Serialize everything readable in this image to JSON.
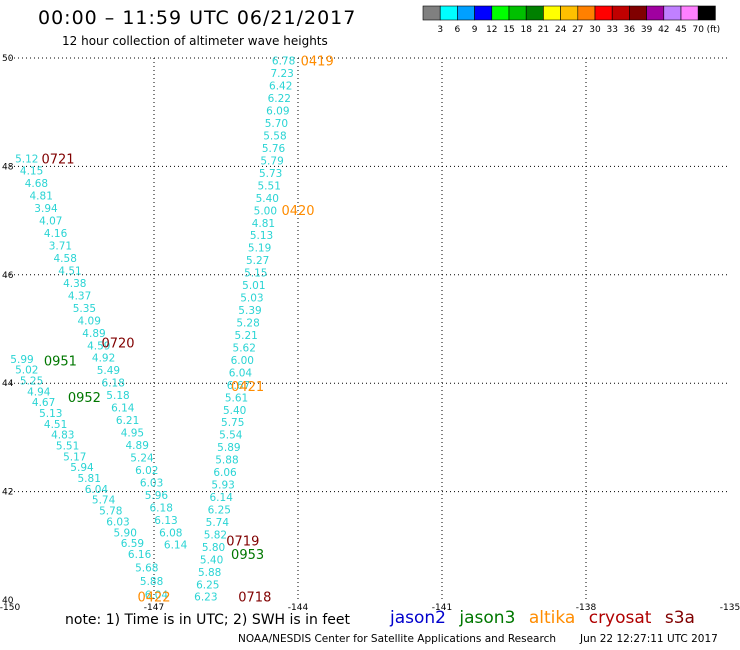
{
  "header": {
    "title": "00:00 – 11:59 UTC 06/21/2017",
    "subtitle": "12 hour collection of altimeter wave heights"
  },
  "legend": {
    "unit": "(ft)",
    "items": [
      {
        "label": "3",
        "color": "#808080"
      },
      {
        "label": "6",
        "color": "#00ffff"
      },
      {
        "label": "9",
        "color": "#00a0ff"
      },
      {
        "label": "12",
        "color": "#0000ff"
      },
      {
        "label": "15",
        "color": "#00ff00"
      },
      {
        "label": "18",
        "color": "#00c000"
      },
      {
        "label": "21",
        "color": "#008000"
      },
      {
        "label": "24",
        "color": "#ffff00"
      },
      {
        "label": "27",
        "color": "#ffc000"
      },
      {
        "label": "30",
        "color": "#ff8000"
      },
      {
        "label": "33",
        "color": "#ff0000"
      },
      {
        "label": "36",
        "color": "#c00000"
      },
      {
        "label": "39",
        "color": "#800000"
      },
      {
        "label": "42",
        "color": "#a000a0"
      },
      {
        "label": "45",
        "color": "#c080ff"
      },
      {
        "label": "70",
        "color": "#ff80ff"
      },
      {
        "label": "",
        "color": "#000000"
      }
    ]
  },
  "map": {
    "lon_range": [
      -150,
      -135
    ],
    "lat_range": [
      40,
      50
    ],
    "lon_ticks": [
      "-150",
      "-147",
      "-144",
      "-141",
      "-138",
      "-135"
    ],
    "lat_ticks": [
      "40",
      "42",
      "44",
      "46",
      "48",
      "50"
    ]
  },
  "colors": {
    "swh_text": "#2ad4d4",
    "jason2": "#0000cc",
    "jason3": "#007700",
    "altika": "#ff8c00",
    "cryosat": "#b00000",
    "s3a": "#800000"
  },
  "tracks": [
    {
      "satellite": "altika",
      "color": "#2ad4d4",
      "points": [
        {
          "lon": -144.3,
          "lat": 49.95,
          "swh": "6.78"
        },
        {
          "lon": -144.33,
          "lat": 49.72,
          "swh": "7.23"
        },
        {
          "lon": -144.36,
          "lat": 49.49,
          "swh": "6.42"
        },
        {
          "lon": -144.39,
          "lat": 49.26,
          "swh": "6.22"
        },
        {
          "lon": -144.42,
          "lat": 49.03,
          "swh": "6.09"
        },
        {
          "lon": -144.45,
          "lat": 48.8,
          "swh": "5.70"
        },
        {
          "lon": -144.48,
          "lat": 48.57,
          "swh": "5.58"
        },
        {
          "lon": -144.51,
          "lat": 48.34,
          "swh": "5.76"
        },
        {
          "lon": -144.54,
          "lat": 48.11,
          "swh": "5.79"
        },
        {
          "lon": -144.57,
          "lat": 47.88,
          "swh": "5.73"
        },
        {
          "lon": -144.6,
          "lat": 47.65,
          "swh": "5.51"
        },
        {
          "lon": -144.64,
          "lat": 47.42,
          "swh": "5.40"
        },
        {
          "lon": -144.68,
          "lat": 47.19,
          "swh": "5.00"
        },
        {
          "lon": -144.72,
          "lat": 46.96,
          "swh": "4.81"
        },
        {
          "lon": -144.76,
          "lat": 46.73,
          "swh": "5.13"
        },
        {
          "lon": -144.8,
          "lat": 46.5,
          "swh": "5.19"
        },
        {
          "lon": -144.84,
          "lat": 46.27,
          "swh": "5.27"
        },
        {
          "lon": -144.88,
          "lat": 46.04,
          "swh": "5.15"
        },
        {
          "lon": -144.92,
          "lat": 45.81,
          "swh": "5.01"
        },
        {
          "lon": -144.96,
          "lat": 45.58,
          "swh": "5.03"
        },
        {
          "lon": -145.0,
          "lat": 45.35,
          "swh": "5.39"
        },
        {
          "lon": -145.04,
          "lat": 45.12,
          "swh": "5.28"
        },
        {
          "lon": -145.08,
          "lat": 44.89,
          "swh": "5.21"
        },
        {
          "lon": -145.12,
          "lat": 44.66,
          "swh": "5.62"
        },
        {
          "lon": -145.16,
          "lat": 44.43,
          "swh": "6.00"
        },
        {
          "lon": -145.2,
          "lat": 44.2,
          "swh": "6.04"
        },
        {
          "lon": -145.24,
          "lat": 43.97,
          "swh": "6.67"
        },
        {
          "lon": -145.28,
          "lat": 43.74,
          "swh": "5.61"
        },
        {
          "lon": -145.32,
          "lat": 43.51,
          "swh": "5.40"
        },
        {
          "lon": -145.36,
          "lat": 43.28,
          "swh": "5.75"
        },
        {
          "lon": -145.4,
          "lat": 43.05,
          "swh": "5.54"
        },
        {
          "lon": -145.44,
          "lat": 42.82,
          "swh": "5.89"
        },
        {
          "lon": -145.48,
          "lat": 42.59,
          "swh": "5.88"
        },
        {
          "lon": -145.52,
          "lat": 42.36,
          "swh": "6.06"
        },
        {
          "lon": -145.56,
          "lat": 42.13,
          "swh": "5.93"
        },
        {
          "lon": -145.6,
          "lat": 41.9,
          "swh": "6.14"
        },
        {
          "lon": -145.64,
          "lat": 41.67,
          "swh": "6.25"
        },
        {
          "lon": -145.68,
          "lat": 41.44,
          "swh": "5.74"
        },
        {
          "lon": -145.72,
          "lat": 41.21,
          "swh": "5.82"
        },
        {
          "lon": -145.76,
          "lat": 40.98,
          "swh": "5.80"
        },
        {
          "lon": -145.8,
          "lat": 40.75,
          "swh": "5.40"
        },
        {
          "lon": -145.84,
          "lat": 40.52,
          "swh": "5.88"
        },
        {
          "lon": -145.88,
          "lat": 40.29,
          "swh": "6.25"
        },
        {
          "lon": -145.92,
          "lat": 40.06,
          "swh": "6.23"
        }
      ]
    },
    {
      "satellite": "cryosat",
      "color": "#2ad4d4",
      "points": [
        {
          "lon": -149.65,
          "lat": 48.15,
          "swh": "5.12"
        },
        {
          "lon": -149.55,
          "lat": 47.92,
          "swh": "4.15"
        },
        {
          "lon": -149.45,
          "lat": 47.69,
          "swh": "4.68"
        },
        {
          "lon": -149.35,
          "lat": 47.46,
          "swh": "4.81"
        },
        {
          "lon": -149.25,
          "lat": 47.23,
          "swh": "3.94"
        },
        {
          "lon": -149.15,
          "lat": 47.0,
          "swh": "4.07"
        },
        {
          "lon": -149.05,
          "lat": 46.77,
          "swh": "4.16"
        },
        {
          "lon": -148.95,
          "lat": 46.54,
          "swh": "3.71"
        },
        {
          "lon": -148.85,
          "lat": 46.31,
          "swh": "4.58"
        },
        {
          "lon": -148.75,
          "lat": 46.08,
          "swh": "4.51"
        },
        {
          "lon": -148.65,
          "lat": 45.85,
          "swh": "4.38"
        },
        {
          "lon": -148.55,
          "lat": 45.62,
          "swh": "4.37"
        },
        {
          "lon": -148.45,
          "lat": 45.39,
          "swh": "5.35"
        },
        {
          "lon": -148.35,
          "lat": 45.16,
          "swh": "4.09"
        },
        {
          "lon": -148.25,
          "lat": 44.93,
          "swh": "4.89"
        },
        {
          "lon": -148.15,
          "lat": 44.7,
          "swh": "4.59"
        },
        {
          "lon": -148.05,
          "lat": 44.47,
          "swh": "4.92"
        },
        {
          "lon": -147.95,
          "lat": 44.24,
          "swh": "5.49"
        },
        {
          "lon": -147.85,
          "lat": 44.01,
          "swh": "6.18"
        },
        {
          "lon": -147.75,
          "lat": 43.78,
          "swh": "5.18"
        },
        {
          "lon": -147.65,
          "lat": 43.55,
          "swh": "6.14"
        },
        {
          "lon": -147.55,
          "lat": 43.32,
          "swh": "6.21"
        },
        {
          "lon": -147.45,
          "lat": 43.09,
          "swh": "4.95"
        },
        {
          "lon": -147.35,
          "lat": 42.86,
          "swh": "4.89"
        },
        {
          "lon": -147.25,
          "lat": 42.63,
          "swh": "5.24"
        },
        {
          "lon": -147.15,
          "lat": 42.4,
          "swh": "6.02"
        },
        {
          "lon": -147.05,
          "lat": 42.17,
          "swh": "6.03"
        },
        {
          "lon": -146.95,
          "lat": 41.94,
          "swh": "5.96"
        },
        {
          "lon": -146.85,
          "lat": 41.71,
          "swh": "6.18"
        },
        {
          "lon": -146.75,
          "lat": 41.48,
          "swh": "6.13"
        },
        {
          "lon": -146.65,
          "lat": 41.25,
          "swh": "6.08"
        },
        {
          "lon": -146.55,
          "lat": 41.02,
          "swh": "6.14"
        }
      ]
    },
    {
      "satellite": "jason3",
      "color": "#2ad4d4",
      "points": [
        {
          "lon": -149.75,
          "lat": 44.45,
          "swh": "5.99"
        },
        {
          "lon": -149.65,
          "lat": 44.25,
          "swh": "5.02"
        },
        {
          "lon": -149.55,
          "lat": 44.05,
          "swh": "5.25"
        },
        {
          "lon": -149.4,
          "lat": 43.85,
          "swh": "4.94"
        },
        {
          "lon": -149.3,
          "lat": 43.65,
          "swh": "4.67"
        },
        {
          "lon": -149.15,
          "lat": 43.45,
          "swh": "5.13"
        },
        {
          "lon": -149.05,
          "lat": 43.25,
          "swh": "4.51"
        },
        {
          "lon": -148.9,
          "lat": 43.05,
          "swh": "4.83"
        },
        {
          "lon": -148.8,
          "lat": 42.85,
          "swh": "5.51"
        },
        {
          "lon": -148.65,
          "lat": 42.65,
          "swh": "5.17"
        },
        {
          "lon": -148.5,
          "lat": 42.45,
          "swh": "5.94"
        },
        {
          "lon": -148.35,
          "lat": 42.25,
          "swh": "5.81"
        },
        {
          "lon": -148.2,
          "lat": 42.05,
          "swh": "6.04"
        },
        {
          "lon": -148.05,
          "lat": 41.85,
          "swh": "5.74"
        },
        {
          "lon": -147.9,
          "lat": 41.65,
          "swh": "5.78"
        },
        {
          "lon": -147.75,
          "lat": 41.45,
          "swh": "6.03"
        },
        {
          "lon": -147.6,
          "lat": 41.25,
          "swh": "5.90"
        },
        {
          "lon": -147.45,
          "lat": 41.05,
          "swh": "6.59"
        },
        {
          "lon": -147.3,
          "lat": 40.85,
          "swh": "6.16"
        },
        {
          "lon": -147.15,
          "lat": 40.6,
          "swh": "5.68"
        },
        {
          "lon": -147.05,
          "lat": 40.35,
          "swh": "5.88"
        },
        {
          "lon": -146.95,
          "lat": 40.1,
          "swh": "6.04"
        }
      ]
    }
  ],
  "time_labels": [
    {
      "text": "0419",
      "satellite": "altika",
      "color": "#ff8c00",
      "lon": -143.6,
      "lat": 49.95
    },
    {
      "text": "0420",
      "satellite": "altika",
      "color": "#ff8c00",
      "lon": -144.0,
      "lat": 47.2
    },
    {
      "text": "0421",
      "satellite": "altika",
      "color": "#ff8c00",
      "lon": -145.05,
      "lat": 43.95
    },
    {
      "text": "0422",
      "satellite": "altika",
      "color": "#ff8c00",
      "lon": -147.0,
      "lat": 40.06
    },
    {
      "text": "0721",
      "satellite": "cryosat",
      "color": "#800000",
      "lon": -149.0,
      "lat": 48.15
    },
    {
      "text": "0720",
      "satellite": "cryosat",
      "color": "#800000",
      "lon": -147.75,
      "lat": 44.75
    },
    {
      "text": "0719",
      "satellite": "cryosat",
      "color": "#800000",
      "lon": -145.15,
      "lat": 41.1
    },
    {
      "text": "0718",
      "satellite": "cryosat",
      "color": "#800000",
      "lon": -144.9,
      "lat": 40.06
    },
    {
      "text": "0951",
      "satellite": "jason3",
      "color": "#007700",
      "lon": -148.95,
      "lat": 44.42
    },
    {
      "text": "0952",
      "satellite": "jason3",
      "color": "#007700",
      "lon": -148.45,
      "lat": 43.75
    },
    {
      "text": "0953",
      "satellite": "jason3",
      "color": "#007700",
      "lon": -145.05,
      "lat": 40.85
    }
  ],
  "footer": {
    "note": "note:  1) Time is in UTC;  2) SWH is in feet",
    "satellites": [
      "jason2",
      "jason3",
      "altika",
      "cryosat",
      "s3a"
    ],
    "credit": "NOAA/NESDIS Center for Satellite Applications and Research",
    "timestamp": "Jun 22 12:27:11 UTC 2017"
  }
}
